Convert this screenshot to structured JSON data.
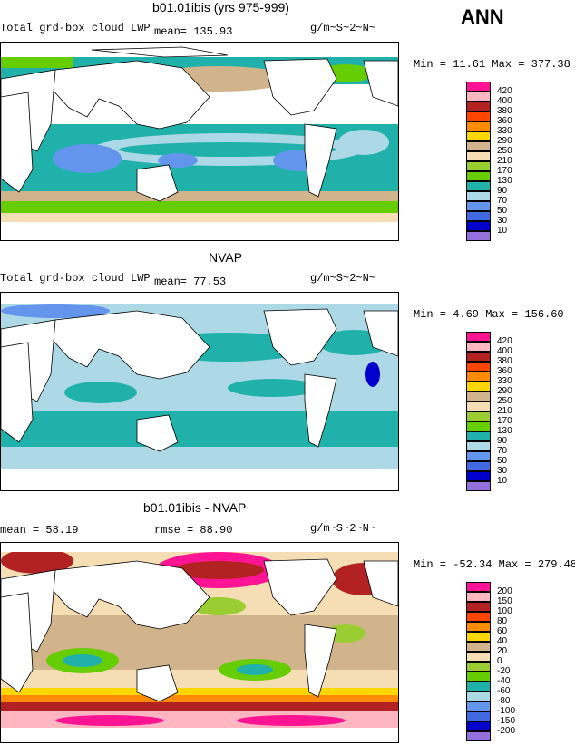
{
  "header": {
    "ann": "ANN"
  },
  "panels": [
    {
      "title": "b01.01ibis (yrs 975-999)",
      "left_label": "Total grd-box cloud LWP",
      "mean_label": "mean=  135.93",
      "units": "g/m~S~2~N~",
      "minmax": "Min =   11.61 Max = 377.38",
      "legend_levels": [
        "420",
        "400",
        "380",
        "360",
        "330",
        "290",
        "250",
        "210",
        "170",
        "130",
        "90",
        "70",
        "50",
        "30",
        "10"
      ]
    },
    {
      "title": "NVAP",
      "left_label": "Total grd-box cloud LWP",
      "mean_label": "mean=   77.53",
      "units": "g/m~S~2~N~",
      "minmax": "Min =    4.69 Max = 156.60",
      "legend_levels": [
        "420",
        "400",
        "380",
        "360",
        "330",
        "290",
        "250",
        "210",
        "170",
        "130",
        "90",
        "70",
        "50",
        "30",
        "10"
      ]
    },
    {
      "title": "b01.01ibis - NVAP",
      "left_label": "mean =   58.19",
      "mean_label": "rmse =   88.90",
      "units": "g/m~S~2~N~",
      "minmax": "Min = -52.34 Max = 279.48",
      "legend_levels": [
        "200",
        "150",
        "100",
        "80",
        "60",
        "40",
        "20",
        "0",
        "-20",
        "-40",
        "-60",
        "-80",
        "-100",
        "-150",
        "-200"
      ]
    }
  ],
  "colors": {
    "abs_scale": [
      "#ff1493",
      "#ffb6c1",
      "#b22222",
      "#ff4500",
      "#ff8c00",
      "#ffd700",
      "#d2b48c",
      "#f5deb3",
      "#9acd32",
      "#66cd00",
      "#20b2aa",
      "#add8e6",
      "#6495ed",
      "#4169e1",
      "#0000cd",
      "#9370db"
    ],
    "diff_scale": [
      "#ff1493",
      "#ffb6c1",
      "#b22222",
      "#ff4500",
      "#ff8c00",
      "#ffd700",
      "#d2b48c",
      "#f5deb3",
      "#9acd32",
      "#66cd00",
      "#20b2aa",
      "#add8e6",
      "#6495ed",
      "#4169e1",
      "#0000cd",
      "#9370db"
    ]
  }
}
